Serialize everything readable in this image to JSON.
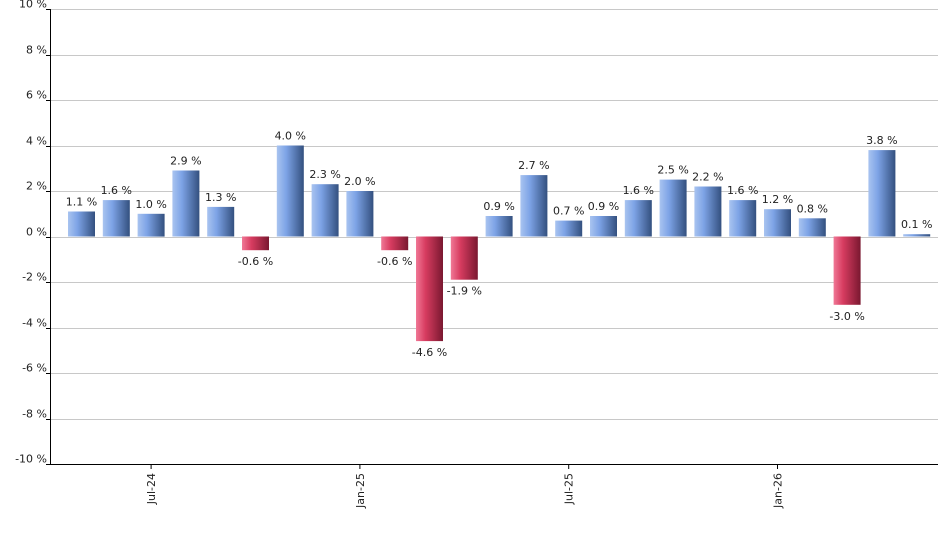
{
  "chart_data": {
    "type": "bar",
    "ylim": [
      -10,
      10
    ],
    "y_ticks": [
      10,
      8,
      6,
      4,
      2,
      0,
      -2,
      -4,
      -6,
      -8,
      -10
    ],
    "y_tick_suffix": " %",
    "grid": true,
    "x_tick_labels": [
      {
        "label": "Jul-24",
        "index": 2
      },
      {
        "label": "Jan-25",
        "index": 8
      },
      {
        "label": "Jul-25",
        "index": 14
      },
      {
        "label": "Jan-26",
        "index": 20
      }
    ],
    "values": [
      1.1,
      1.6,
      1.0,
      2.9,
      1.3,
      -0.6,
      4.0,
      2.3,
      2.0,
      -0.6,
      -4.6,
      -1.9,
      0.9,
      2.7,
      0.7,
      0.9,
      1.6,
      2.5,
      2.2,
      1.6,
      1.2,
      0.8,
      -3.0,
      3.8,
      0.1
    ],
    "labels": [
      "1.1 %",
      "1.6 %",
      "1.0 %",
      "2.9 %",
      "1.3 %",
      "-0.6 %",
      "4.0 %",
      "2.3 %",
      "2.0 %",
      "-0.6 %",
      "-4.6 %",
      "-1.9 %",
      "0.9 %",
      "2.7 %",
      "0.7 %",
      "0.9 %",
      "1.6 %",
      "2.5 %",
      "2.2 %",
      "1.6 %",
      "1.2 %",
      "0.8 %",
      "-3.0 %",
      "3.8 %",
      "0.1 %"
    ],
    "colors": {
      "positive_light": "#a9c4f0",
      "positive_mid": "#7da3e6",
      "positive_dark": "#33507f",
      "negative_light": "#f07896",
      "negative_mid": "#d73c60",
      "negative_dark": "#7a1830"
    }
  }
}
